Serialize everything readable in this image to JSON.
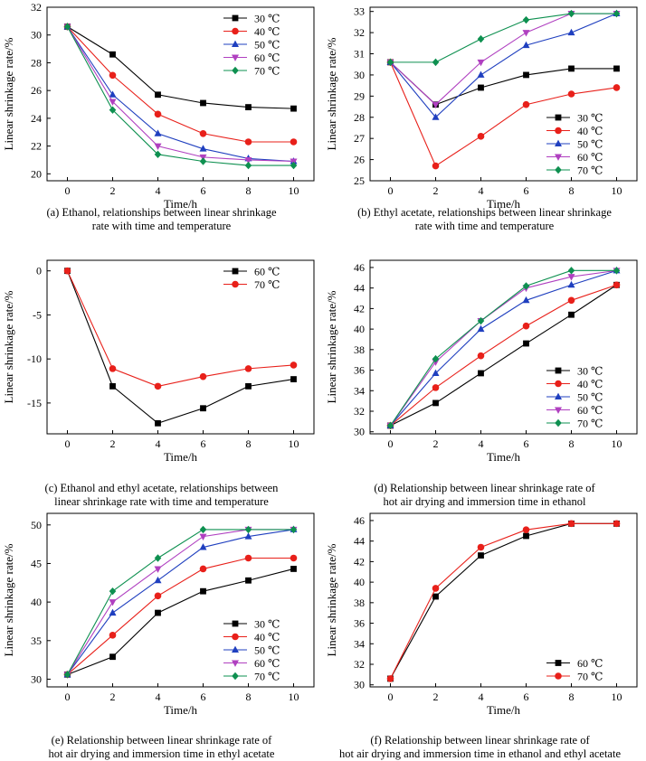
{
  "colors": {
    "30": "#000000",
    "40": "#e8201a",
    "50": "#1f3fbf",
    "60": "#b040c0",
    "70": "#0e9050"
  },
  "markers": {
    "30": "square",
    "40": "circle",
    "50": "triangle-up",
    "60": "triangle-down",
    "70": "diamond"
  },
  "chart_data": [
    {
      "id": "a",
      "type": "line",
      "caption_lines": [
        "(a) Ethanol, relationships between linear shrinkage",
        "rate with time and temperature"
      ],
      "xlabel": "Time/h",
      "ylabel": "Linear shrinkage rate/%",
      "xlim": [
        -0.9,
        10.9
      ],
      "ylim": [
        19.5,
        32
      ],
      "xticks": [
        0,
        2,
        4,
        6,
        8,
        10
      ],
      "yticks": [
        20,
        22,
        24,
        26,
        28,
        30,
        32
      ],
      "legend_position": "top-right",
      "x": [
        0,
        2,
        4,
        6,
        8,
        10
      ],
      "series": [
        {
          "key": "30",
          "name": "30 ℃",
          "values": [
            30.6,
            28.6,
            25.7,
            25.1,
            24.8,
            24.7
          ]
        },
        {
          "key": "40",
          "name": "40 ℃",
          "values": [
            30.6,
            27.1,
            24.3,
            22.9,
            22.3,
            22.3
          ]
        },
        {
          "key": "50",
          "name": "50 ℃",
          "values": [
            30.6,
            25.7,
            22.9,
            21.8,
            21.1,
            20.9
          ]
        },
        {
          "key": "60",
          "name": "60 ℃",
          "values": [
            30.6,
            25.2,
            22.0,
            21.2,
            21.0,
            20.9
          ]
        },
        {
          "key": "70",
          "name": "70 ℃",
          "values": [
            30.6,
            24.6,
            21.4,
            20.9,
            20.6,
            20.6
          ]
        }
      ]
    },
    {
      "id": "b",
      "type": "line",
      "caption_lines": [
        "(b) Ethyl acetate, relationships between linear shrinkage",
        "rate with time and temperature"
      ],
      "xlabel": "Time/h",
      "ylabel": "Linear shrinkage rate/%",
      "xlim": [
        -0.9,
        10.9
      ],
      "ylim": [
        25,
        33.2
      ],
      "xticks": [
        0,
        2,
        4,
        6,
        8,
        10
      ],
      "yticks": [
        25,
        26,
        27,
        28,
        29,
        30,
        31,
        32,
        33
      ],
      "legend_position": "bottom-right",
      "x": [
        0,
        2,
        4,
        6,
        8,
        10
      ],
      "series": [
        {
          "key": "30",
          "name": "30 ℃",
          "values": [
            30.6,
            28.6,
            29.4,
            30.0,
            30.3,
            30.3
          ]
        },
        {
          "key": "40",
          "name": "40 ℃",
          "values": [
            30.6,
            25.7,
            27.1,
            28.6,
            29.1,
            29.4
          ]
        },
        {
          "key": "50",
          "name": "50 ℃",
          "values": [
            30.6,
            28.0,
            30.0,
            31.4,
            32.0,
            32.9
          ]
        },
        {
          "key": "60",
          "name": "60 ℃",
          "values": [
            30.6,
            28.6,
            30.6,
            32.0,
            32.9,
            32.9
          ]
        },
        {
          "key": "70",
          "name": "70 ℃",
          "values": [
            30.6,
            30.6,
            31.7,
            32.6,
            32.9,
            32.9
          ]
        }
      ]
    },
    {
      "id": "c",
      "type": "line",
      "caption_lines": [
        "(c) Ethanol and ethyl acetate, relationships between",
        "linear shrinkage rate with time and temperature"
      ],
      "xlabel": "Time/h",
      "ylabel": "Linear shrinkage rate/%",
      "xlim": [
        -0.9,
        10.9
      ],
      "ylim": [
        -18.5,
        1.2
      ],
      "xticks": [
        0,
        2,
        4,
        6,
        8,
        10
      ],
      "yticks": [
        0,
        -5,
        -10,
        -15
      ],
      "legend_position": "top-right",
      "x": [
        0,
        2,
        4,
        6,
        8,
        10
      ],
      "series": [
        {
          "key": "30",
          "name": "60 ℃",
          "values": [
            0,
            -13.1,
            -17.3,
            -15.6,
            -13.1,
            -12.3
          ]
        },
        {
          "key": "40",
          "name": "70 ℃",
          "values": [
            0,
            -11.1,
            -13.1,
            -12.0,
            -11.1,
            -10.7
          ]
        }
      ]
    },
    {
      "id": "d",
      "type": "line",
      "caption_lines": [
        "(d) Relationship between linear shrinkage rate of",
        "hot air drying and immersion time in ethanol"
      ],
      "xlabel": "Time/h",
      "ylabel": "Linear shrinkage rate/%",
      "xlim": [
        -0.9,
        10.9
      ],
      "ylim": [
        29.8,
        46.7
      ],
      "xticks": [
        0,
        2,
        4,
        6,
        8,
        10
      ],
      "yticks": [
        30,
        32,
        34,
        36,
        38,
        40,
        42,
        44,
        46
      ],
      "legend_position": "bottom-right",
      "x": [
        0,
        2,
        4,
        6,
        8,
        10
      ],
      "series": [
        {
          "key": "30",
          "name": "30 ℃",
          "values": [
            30.6,
            32.8,
            35.7,
            38.6,
            41.4,
            44.3
          ]
        },
        {
          "key": "40",
          "name": "40 ℃",
          "values": [
            30.6,
            34.3,
            37.4,
            40.3,
            42.8,
            44.3
          ]
        },
        {
          "key": "50",
          "name": "50 ℃",
          "values": [
            30.6,
            35.7,
            40.0,
            42.8,
            44.3,
            45.7
          ]
        },
        {
          "key": "60",
          "name": "60 ℃",
          "values": [
            30.6,
            36.8,
            40.8,
            44.0,
            45.1,
            45.7
          ]
        },
        {
          "key": "70",
          "name": "70 ℃",
          "values": [
            30.6,
            37.1,
            40.8,
            44.2,
            45.7,
            45.7
          ]
        }
      ]
    },
    {
      "id": "e",
      "type": "line",
      "caption_lines": [
        "(e) Relationship between linear shrinkage rate of",
        "hot air drying and immersion time in ethyl acetate"
      ],
      "xlabel": "Time/h",
      "ylabel": "Linear shrinkage rate/%",
      "xlim": [
        -0.9,
        10.9
      ],
      "ylim": [
        29,
        51.5
      ],
      "xticks": [
        0,
        2,
        4,
        6,
        8,
        10
      ],
      "yticks": [
        30,
        35,
        40,
        45,
        50
      ],
      "legend_position": "bottom-right",
      "x": [
        0,
        2,
        4,
        6,
        8,
        10
      ],
      "series": [
        {
          "key": "30",
          "name": "30 ℃",
          "values": [
            30.6,
            32.9,
            38.6,
            41.4,
            42.8,
            44.3
          ]
        },
        {
          "key": "40",
          "name": "40 ℃",
          "values": [
            30.6,
            35.7,
            40.8,
            44.3,
            45.7,
            45.7
          ]
        },
        {
          "key": "50",
          "name": "50 ℃",
          "values": [
            30.6,
            38.6,
            42.8,
            47.1,
            48.5,
            49.4
          ]
        },
        {
          "key": "60",
          "name": "60 ℃",
          "values": [
            30.6,
            40.0,
            44.3,
            48.5,
            49.4,
            49.4
          ]
        },
        {
          "key": "70",
          "name": "70 ℃",
          "values": [
            30.6,
            41.4,
            45.7,
            49.4,
            49.4,
            49.4
          ]
        }
      ]
    },
    {
      "id": "f",
      "type": "line",
      "caption_lines": [
        "(f) Relationship between linear shrinkage rate of",
        "hot air drying and immersion time in ethanol and ethyl acetate"
      ],
      "xlabel": "Time/h",
      "ylabel": "Linear shrinkage rate/%",
      "xlim": [
        -0.9,
        10.9
      ],
      "ylim": [
        29.8,
        46.7
      ],
      "xticks": [
        0,
        2,
        4,
        6,
        8,
        10
      ],
      "yticks": [
        30,
        32,
        34,
        36,
        38,
        40,
        42,
        44,
        46
      ],
      "legend_position": "bottom-right",
      "x": [
        0,
        2,
        4,
        6,
        8,
        10
      ],
      "series": [
        {
          "key": "30",
          "name": "60 ℃",
          "values": [
            30.6,
            38.6,
            42.6,
            44.5,
            45.7,
            45.7
          ]
        },
        {
          "key": "40",
          "name": "70 ℃",
          "values": [
            30.6,
            39.4,
            43.4,
            45.1,
            45.7,
            45.7
          ]
        }
      ]
    }
  ]
}
